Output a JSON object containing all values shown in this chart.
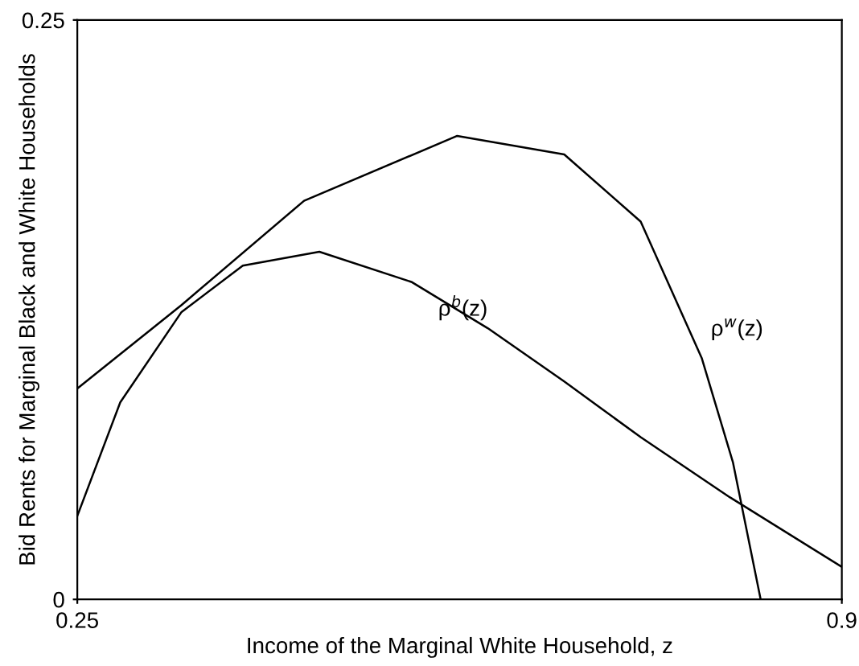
{
  "chart_data": {
    "type": "line",
    "xlabel": "Income of the Marginal White Household, z",
    "ylabel": "Bid Rents for Marginal Black and White Households",
    "xlim": [
      0.25,
      0.9
    ],
    "ylim": [
      0,
      0.25
    ],
    "xticks": [
      0.25,
      0.9
    ],
    "yticks": [
      0,
      0.25
    ],
    "grid": false,
    "legend": false,
    "marker": "none",
    "line_style": "solid",
    "series": [
      {
        "name": "ρ$^{w}$(z)",
        "color": "#000000",
        "x": [
          0.25,
          0.3386,
          0.4428,
          0.573,
          0.664,
          0.729,
          0.781,
          0.8075,
          0.831
        ],
        "values": [
          0.091,
          0.127,
          0.172,
          0.2,
          0.192,
          0.163,
          0.104,
          0.059,
          0
        ]
      },
      {
        "name": "ρ$^{b}$(z)",
        "color": "#000000",
        "x": [
          0.25,
          0.2865,
          0.3386,
          0.3907,
          0.4558,
          0.534,
          0.599,
          0.664,
          0.729,
          0.805,
          0.9
        ],
        "values": [
          0.036,
          0.085,
          0.124,
          0.144,
          0.15,
          0.137,
          0.117,
          0.094,
          0.07,
          0.044,
          0.014
        ]
      }
    ]
  }
}
